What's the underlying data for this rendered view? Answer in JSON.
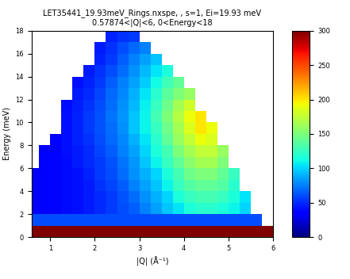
{
  "chart_data": {
    "type": "heatmap",
    "title": "LET35441_19.93meV_Rings.nxspe, , s=1, Ei=19.93 meV\n0.57874<|Q|<6, 0<Energy<18",
    "x_label": "|Q| (Å⁻¹)",
    "y_label": "Energy (meV)",
    "xlim": [
      0.57874,
      6
    ],
    "xticks": [
      1,
      2,
      3,
      4,
      5,
      6
    ],
    "ylim": [
      0,
      18
    ],
    "yticks": [
      0,
      2,
      4,
      6,
      8,
      10,
      12,
      14,
      16,
      18
    ],
    "x_edges": [
      0.57874,
      0.75,
      1.0,
      1.25,
      1.5,
      1.75,
      2.0,
      2.25,
      2.5,
      2.75,
      3.0,
      3.25,
      3.5,
      3.75,
      4.0,
      4.25,
      4.5,
      4.75,
      5.0,
      5.25,
      5.5,
      5.75,
      6.0
    ],
    "y_edges": [
      0,
      1,
      2,
      3,
      4,
      5,
      6,
      7,
      8,
      9,
      10,
      11,
      12,
      13,
      14,
      15,
      16,
      17,
      18
    ],
    "cells": [
      [
        300,
        300,
        300,
        300,
        300,
        300,
        300,
        300,
        300,
        300,
        300,
        300,
        300,
        300,
        300,
        300,
        300,
        300,
        300,
        300,
        300,
        300
      ],
      [
        60,
        60,
        60,
        60,
        60,
        60,
        60,
        60,
        60,
        60,
        60,
        60,
        60,
        60,
        60,
        60,
        60,
        60,
        60,
        60,
        60,
        null
      ],
      [
        35,
        35,
        38,
        40,
        42,
        45,
        50,
        55,
        60,
        65,
        75,
        85,
        95,
        105,
        115,
        120,
        120,
        115,
        110,
        100,
        null,
        null
      ],
      [
        35,
        35,
        38,
        40,
        42,
        45,
        50,
        55,
        62,
        70,
        80,
        90,
        100,
        115,
        125,
        130,
        130,
        125,
        115,
        105,
        null,
        null
      ],
      [
        35,
        35,
        38,
        40,
        42,
        45,
        52,
        58,
        65,
        75,
        85,
        95,
        110,
        125,
        135,
        140,
        140,
        135,
        120,
        null,
        null,
        null
      ],
      [
        35,
        35,
        38,
        40,
        42,
        48,
        55,
        60,
        70,
        80,
        90,
        100,
        115,
        130,
        145,
        150,
        150,
        140,
        125,
        null,
        null,
        null
      ],
      [
        null,
        35,
        38,
        40,
        45,
        50,
        55,
        62,
        72,
        82,
        95,
        110,
        125,
        140,
        155,
        165,
        165,
        150,
        null,
        null,
        null,
        null
      ],
      [
        null,
        35,
        38,
        42,
        45,
        50,
        58,
        65,
        75,
        85,
        100,
        115,
        130,
        150,
        165,
        175,
        175,
        160,
        null,
        null,
        null,
        null
      ],
      [
        null,
        null,
        38,
        42,
        48,
        52,
        60,
        68,
        78,
        90,
        105,
        120,
        140,
        160,
        175,
        190,
        185,
        null,
        null,
        null,
        null,
        null
      ],
      [
        null,
        null,
        null,
        42,
        48,
        55,
        62,
        70,
        80,
        95,
        110,
        125,
        145,
        165,
        185,
        200,
        190,
        null,
        null,
        null,
        null,
        null
      ],
      [
        null,
        null,
        null,
        42,
        48,
        55,
        62,
        72,
        82,
        95,
        110,
        130,
        150,
        170,
        190,
        200,
        null,
        null,
        null,
        null,
        null,
        null
      ],
      [
        null,
        null,
        null,
        40,
        46,
        52,
        60,
        70,
        80,
        92,
        108,
        125,
        145,
        165,
        180,
        null,
        null,
        null,
        null,
        null,
        null,
        null
      ],
      [
        null,
        null,
        null,
        null,
        45,
        50,
        58,
        68,
        78,
        90,
        105,
        120,
        138,
        150,
        160,
        null,
        null,
        null,
        null,
        null,
        null,
        null
      ],
      [
        null,
        null,
        null,
        null,
        42,
        48,
        55,
        65,
        75,
        85,
        98,
        112,
        128,
        140,
        null,
        null,
        null,
        null,
        null,
        null,
        null,
        null
      ],
      [
        null,
        null,
        null,
        null,
        null,
        45,
        52,
        60,
        70,
        80,
        92,
        105,
        115,
        null,
        null,
        null,
        null,
        null,
        null,
        null,
        null,
        null
      ],
      [
        null,
        null,
        null,
        null,
        null,
        null,
        48,
        55,
        65,
        75,
        85,
        95,
        null,
        null,
        null,
        null,
        null,
        null,
        null,
        null,
        null,
        null
      ],
      [
        null,
        null,
        null,
        null,
        null,
        null,
        45,
        52,
        60,
        68,
        75,
        null,
        null,
        null,
        null,
        null,
        null,
        null,
        null,
        null,
        null,
        null
      ],
      [
        null,
        null,
        null,
        null,
        null,
        null,
        null,
        48,
        52,
        55,
        null,
        null,
        null,
        null,
        null,
        null,
        null,
        null,
        null,
        null,
        null,
        null
      ]
    ],
    "colorbar_range": [
      0,
      300
    ],
    "colorbar_ticks": [
      0,
      50,
      100,
      150,
      200,
      250,
      300
    ]
  }
}
